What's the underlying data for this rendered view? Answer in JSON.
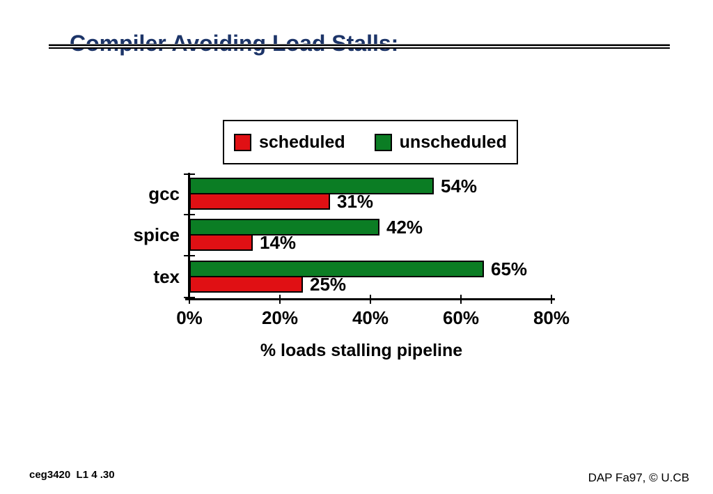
{
  "slide": {
    "title": "Compiler Avoiding Load Stalls:",
    "footer_left": "ceg3420  L1 4 .30",
    "footer_right": "DAP Fa97, © U.CB"
  },
  "colors": {
    "title_text": "#1c3468",
    "scheduled_red": "#e01014",
    "unscheduled_green": "#0b7d24",
    "bar_border": "#000000"
  },
  "chart_data": {
    "type": "bar",
    "orientation": "horizontal",
    "categories": [
      "gcc",
      "spice",
      "tex"
    ],
    "series": [
      {
        "name": "unscheduled",
        "color": "#0b7d24",
        "values": [
          54,
          42,
          65
        ]
      },
      {
        "name": "scheduled",
        "color": "#e01014",
        "values": [
          31,
          14,
          25
        ]
      }
    ],
    "value_labels": [
      [
        "54%",
        "31%"
      ],
      [
        "42%",
        "14%"
      ],
      [
        "65%",
        "25%"
      ]
    ],
    "xlabel": "% loads stalling pipeline",
    "x_ticks": [
      "0%",
      "20%",
      "40%",
      "60%",
      "80%"
    ],
    "x_tick_values": [
      0,
      20,
      40,
      60,
      80
    ],
    "xlim": [
      0,
      80
    ],
    "grid": false,
    "legend_position": "top",
    "legend": [
      {
        "label": "scheduled",
        "color": "#e01014"
      },
      {
        "label": "unscheduled",
        "color": "#0b7d24"
      }
    ]
  }
}
